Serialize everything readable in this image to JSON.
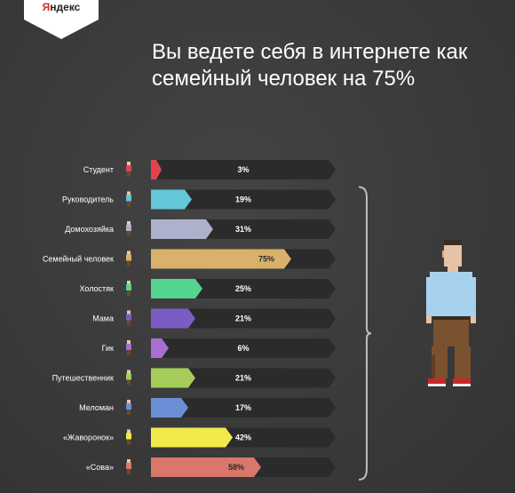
{
  "brand": {
    "logo_text_first": "Я",
    "logo_text_rest": "ндекс"
  },
  "headline": "Вы ведете себя в интернете как семейный человек на 75%",
  "chart_data": {
    "type": "bar",
    "orientation": "horizontal",
    "xlim": [
      0,
      100
    ],
    "unit": "%",
    "categories": [
      "Студент",
      "Руководитель",
      "Домохозяйка",
      "Семейный человек",
      "Холостяк",
      "Мама",
      "Гик",
      "Путешественник",
      "Меломан",
      "«Жаворонок»",
      "«Сова»"
    ],
    "values": [
      3,
      19,
      31,
      75,
      25,
      21,
      6,
      21,
      17,
      42,
      58
    ],
    "labels": [
      "3%",
      "19%",
      "31%",
      "75%",
      "25%",
      "21%",
      "6%",
      "21%",
      "17%",
      "42%",
      "58%"
    ],
    "colors": [
      "#e0454f",
      "#63c6d9",
      "#aeb1cc",
      "#d9b16a",
      "#55d48e",
      "#7b5cc4",
      "#a86fd1",
      "#a6cc5a",
      "#6b8fd6",
      "#f2ea4a",
      "#d9776d"
    ],
    "track_color": "#2b2b2b",
    "highlight_index": 3,
    "avatar_icons": [
      "student-avatar-icon",
      "manager-avatar-icon",
      "housewife-avatar-icon",
      "family-man-avatar-icon",
      "bachelor-avatar-icon",
      "mom-avatar-icon",
      "geek-avatar-icon",
      "traveler-avatar-icon",
      "music-lover-avatar-icon",
      "early-bird-avatar-icon",
      "night-owl-avatar-icon"
    ],
    "bracket_color": "#bdbdbd",
    "large_figure_icon": "family-man-pixel-figure-icon"
  }
}
